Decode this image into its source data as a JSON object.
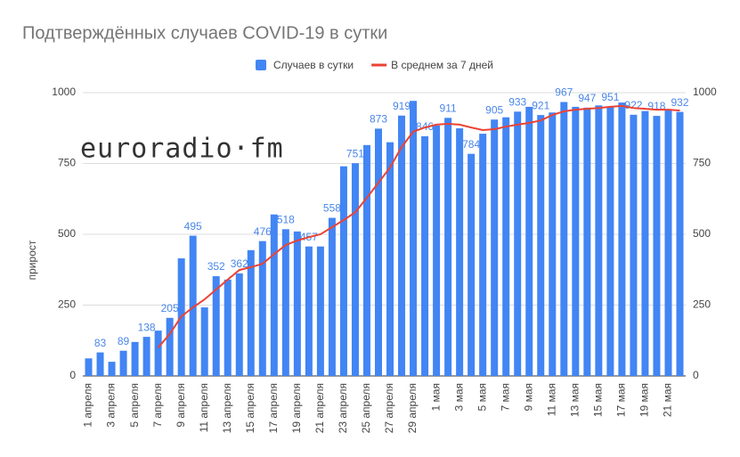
{
  "chart_data": {
    "type": "bar",
    "title": "Подтверждённых случаев COVID-19 в сутки",
    "watermark": "euroradio·fm",
    "y_label": "прирост",
    "categories": [
      "1 апреля",
      null,
      "3 апреля",
      null,
      "5 апреля",
      null,
      "7 апреля",
      null,
      "9 апреля",
      null,
      "11 апреля",
      null,
      "13 апреля",
      null,
      "15 апреля",
      null,
      "17 апреля",
      null,
      "19 апреля",
      null,
      "21 апреля",
      null,
      "23 апреля",
      null,
      "25 апреля",
      null,
      "27 апреля",
      null,
      "29 апреля",
      null,
      "1 мая",
      null,
      "3 мая",
      null,
      "5 мая",
      null,
      "7 мая",
      null,
      "9 мая",
      null,
      "11 мая",
      null,
      "13 мая",
      null,
      "15 мая",
      null,
      "17 мая",
      null,
      "19 мая",
      null,
      "21 мая",
      null
    ],
    "series": [
      {
        "name": "Случаев в сутки",
        "type": "bar",
        "color": "#4285f4",
        "values": [
          62,
          83,
          50,
          89,
          120,
          138,
          160,
          205,
          415,
          495,
          242,
          352,
          340,
          362,
          444,
          476,
          570,
          518,
          510,
          457,
          457,
          558,
          740,
          751,
          815,
          873,
          825,
          919,
          971,
          846,
          884,
          911,
          874,
          784,
          855,
          905,
          913,
          933,
          950,
          921,
          930,
          967,
          950,
          947,
          955,
          951,
          965,
          922,
          935,
          918,
          942,
          932
        ],
        "value_labels": [
          null,
          "83",
          null,
          "89",
          null,
          "138",
          null,
          "205",
          null,
          "495",
          null,
          "352",
          null,
          "362",
          null,
          "476",
          null,
          "518",
          null,
          "457",
          null,
          "558",
          null,
          "751",
          null,
          "873",
          null,
          "919",
          null,
          "846",
          null,
          "911",
          null,
          "784",
          null,
          "905",
          null,
          "933",
          null,
          "921",
          null,
          "967",
          null,
          "947",
          null,
          "951",
          null,
          "922",
          null,
          "918",
          null,
          "932"
        ]
      },
      {
        "name": "В среднем за 7 дней",
        "type": "line",
        "color": "#ea4335",
        "values": [
          null,
          null,
          null,
          null,
          null,
          null,
          100,
          148,
          210,
          242,
          270,
          305,
          340,
          374,
          384,
          396,
          430,
          462,
          478,
          490,
          500,
          525,
          550,
          578,
          629,
          682,
          736,
          808,
          862,
          877,
          887,
          890,
          887,
          877,
          868,
          871,
          880,
          887,
          893,
          902,
          921,
          934,
          940,
          943,
          946,
          950,
          953,
          946,
          943,
          940,
          940,
          937
        ]
      }
    ],
    "ylim": [
      0,
      1000
    ],
    "yticks": [
      0,
      250,
      500,
      750,
      1000
    ],
    "y2lim": [
      0,
      1000
    ],
    "y2ticks": [
      0,
      250,
      500,
      750,
      1000
    ],
    "grid": true,
    "legend": "top"
  }
}
